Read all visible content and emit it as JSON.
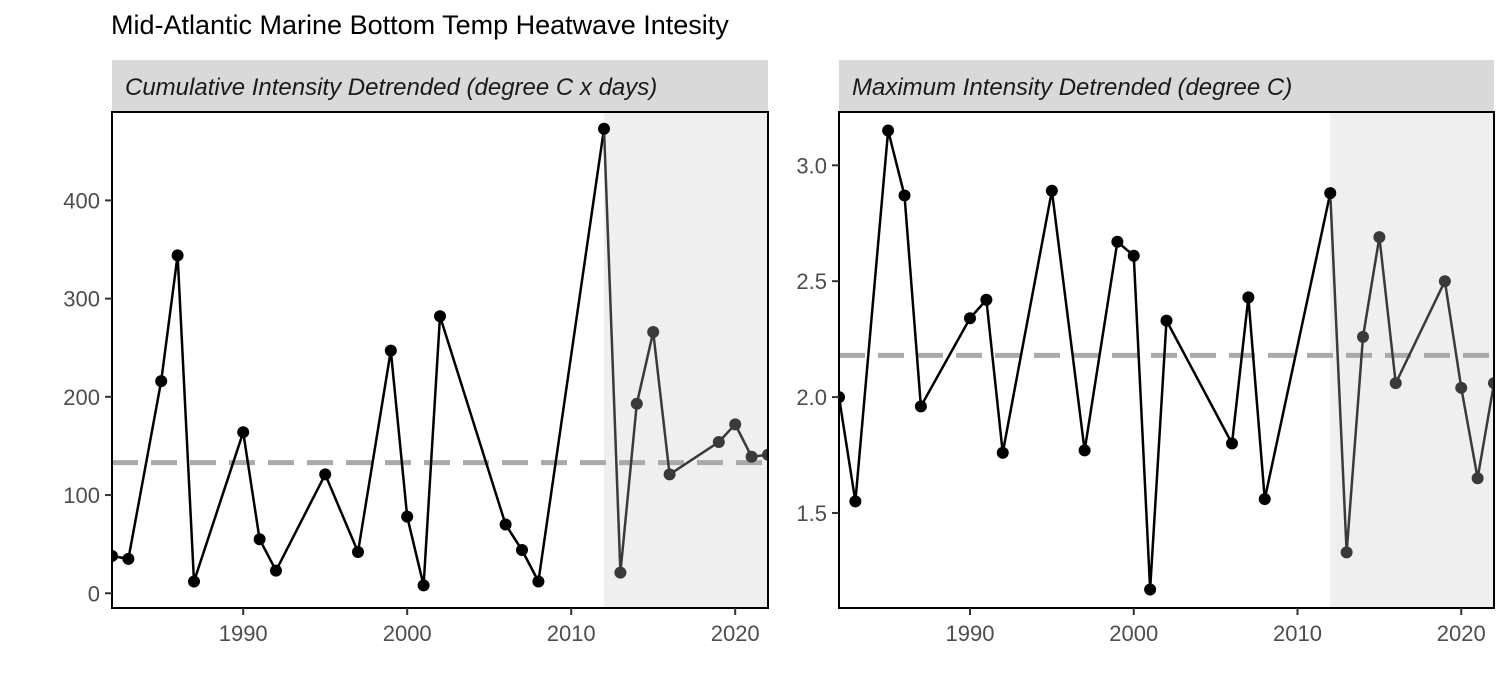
{
  "title": "Mid-Atlantic Marine Bottom Temp Heatwave Intesity",
  "colors": {
    "strip": "#d9d9d9",
    "shade": "#efefef",
    "line": "#000000",
    "recent_line": "#3a3a3a",
    "mean_line": "#aaaaaa",
    "axis_text": "#4d4d4d"
  },
  "chart_data": [
    {
      "type": "line",
      "strip_label": "Cumulative Intensity Detrended (degree C x days)",
      "xlim": [
        1982,
        2022
      ],
      "ylim": [
        -15,
        490
      ],
      "x_ticks": [
        1990,
        2000,
        2010,
        2020
      ],
      "y_ticks": [
        0,
        100,
        200,
        300,
        400
      ],
      "shaded_from": 2012,
      "mean": 133,
      "grid": false,
      "x": [
        1982,
        1983,
        1985,
        1986,
        1987,
        1990,
        1991,
        1992,
        1995,
        1997,
        1999,
        2000,
        2001,
        2002,
        2006,
        2007,
        2008,
        2012,
        2013,
        2014,
        2015,
        2016,
        2019,
        2020,
        2021,
        2022
      ],
      "y": [
        38,
        35,
        216,
        344,
        12,
        164,
        55,
        23,
        121,
        42,
        247,
        78,
        8,
        282,
        70,
        44,
        12,
        473,
        21,
        193,
        266,
        121,
        154,
        172,
        139,
        141
      ]
    },
    {
      "type": "line",
      "strip_label": "Maximum Intensity Detrended (degree C)",
      "xlim": [
        1982,
        2022
      ],
      "ylim": [
        1.09,
        3.23
      ],
      "x_ticks": [
        1990,
        2000,
        2010,
        2020
      ],
      "y_ticks": [
        "1.5",
        "2.0",
        "2.5",
        "3.0"
      ],
      "shaded_from": 2012,
      "mean": 2.18,
      "grid": false,
      "x": [
        1982,
        1983,
        1985,
        1986,
        1987,
        1990,
        1991,
        1992,
        1995,
        1997,
        1999,
        2000,
        2001,
        2002,
        2006,
        2007,
        2008,
        2012,
        2013,
        2014,
        2015,
        2016,
        2019,
        2020,
        2021,
        2022
      ],
      "y": [
        2.0,
        1.55,
        3.15,
        2.87,
        1.96,
        2.34,
        2.42,
        1.76,
        2.89,
        1.77,
        2.67,
        2.61,
        1.17,
        2.33,
        1.8,
        2.43,
        1.56,
        2.88,
        1.33,
        2.26,
        2.69,
        2.06,
        2.5,
        2.04,
        1.65,
        2.06
      ]
    }
  ]
}
